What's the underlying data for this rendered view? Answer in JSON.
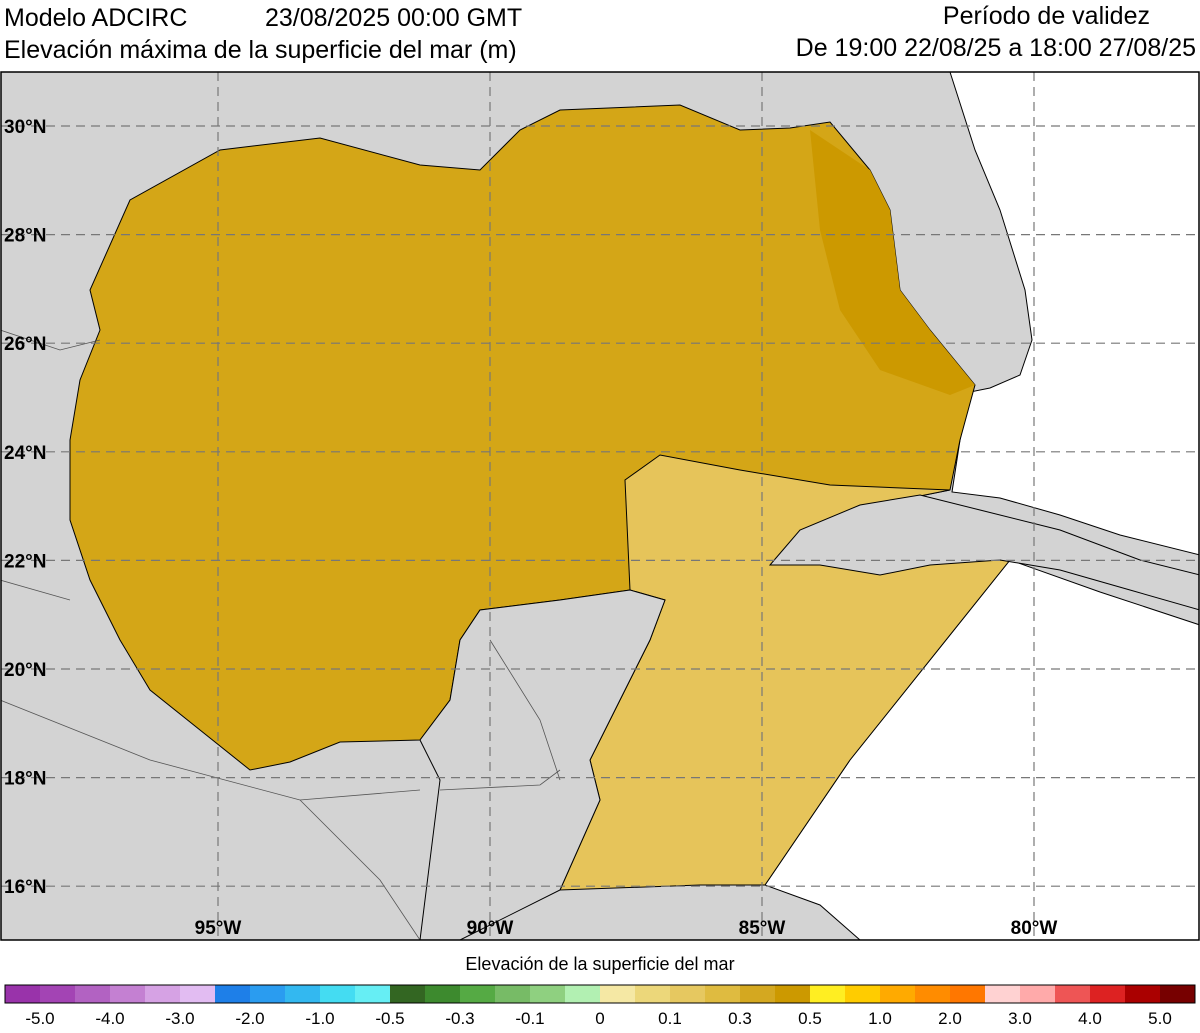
{
  "header": {
    "model": "Modelo ADCIRC",
    "date": "23/08/2025 00:00 GMT",
    "subtitle": "Elevación máxima de la superficie del mar (m)",
    "validity_title": "Período de validez",
    "validity_range": "De 19:00 22/08/25 a 18:00 27/08/25"
  },
  "map": {
    "latitude_labels": [
      "30°N",
      "28°N",
      "26°N",
      "24°N",
      "22°N",
      "20°N",
      "18°N",
      "16°N"
    ],
    "longitude_labels": [
      "95°W",
      "90°W",
      "85°W",
      "80°W"
    ]
  },
  "colorbar": {
    "title": "Elevación de la superficie del mar",
    "labels": [
      "-5.0",
      "-4.0",
      "-3.0",
      "-2.0",
      "-1.0",
      "-0.5",
      "-0.3",
      "-0.1",
      "0",
      "0.1",
      "0.3",
      "0.5",
      "1.0",
      "2.0",
      "3.0",
      "4.0",
      "5.0"
    ],
    "colors": [
      "#9933aa",
      "#a344b4",
      "#b262c2",
      "#c480d2",
      "#d6a2e4",
      "#e2bcf2",
      "#1e7fe8",
      "#2a9cf0",
      "#33b8f0",
      "#44dcf2",
      "#66eef4",
      "#336622",
      "#3d8a2e",
      "#55aa44",
      "#77bb66",
      "#8fd080",
      "#b2f0b2",
      "#f5e8a4",
      "#ecd77a",
      "#e6c860",
      "#dfbb40",
      "#d4a820",
      "#cc9900",
      "#ffee22",
      "#ffcc00",
      "#ffaa00",
      "#ff8c00",
      "#ff7700",
      "#ffd2d2",
      "#ffaaaa",
      "#ee5555",
      "#dd2222",
      "#aa0000",
      "#770000"
    ]
  }
}
